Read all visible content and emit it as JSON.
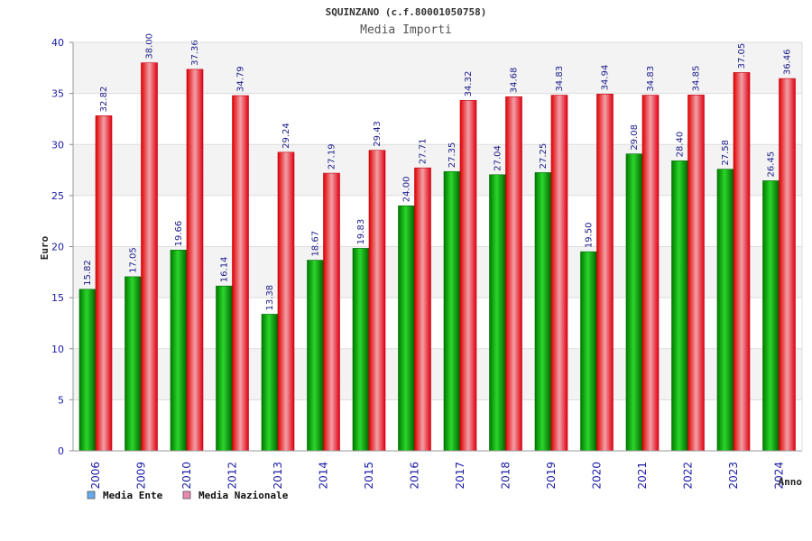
{
  "chart_data": {
    "type": "bar",
    "title": "SQUINZANO (c.f.80001050758)",
    "subtitle": "Media Importi",
    "ylabel": "Euro",
    "xlabel": "Anno",
    "ylim": [
      0,
      40
    ],
    "yticks": [
      0,
      5,
      10,
      15,
      20,
      25,
      30,
      35,
      40
    ],
    "grid": true,
    "legend_position": "bottom-left",
    "categories": [
      "2006",
      "2009",
      "2010",
      "2012",
      "2013",
      "2014",
      "2015",
      "2016",
      "2017",
      "2018",
      "2019",
      "2020",
      "2021",
      "2022",
      "2023",
      "2024"
    ],
    "series": [
      {
        "name": "Media Ente",
        "color": "#00b000",
        "legend_color": "#66aaee",
        "values": [
          15.82,
          17.05,
          19.66,
          16.14,
          13.38,
          18.67,
          19.83,
          24.0,
          27.35,
          27.04,
          27.25,
          19.5,
          29.08,
          28.4,
          27.58,
          26.45
        ],
        "labels": [
          "15.82",
          "17.05",
          "19.66",
          "16.14",
          "13.38",
          "18.67",
          "19.83",
          "24.00",
          "27.35",
          "27.04",
          "27.25",
          "19.50",
          "29.08",
          "28.40",
          "27.58",
          "26.45"
        ]
      },
      {
        "name": "Media Nazionale",
        "color": "#e8101e",
        "legend_color": "#e888b0",
        "values": [
          32.82,
          38.0,
          37.36,
          34.79,
          29.24,
          27.19,
          29.43,
          27.71,
          34.32,
          34.68,
          34.83,
          34.94,
          34.83,
          34.85,
          37.05,
          36.46
        ],
        "labels": [
          "32.82",
          "38.00",
          "37.36",
          "34.79",
          "29.24",
          "27.19",
          "29.43",
          "27.71",
          "34.32",
          "34.68",
          "34.83",
          "34.94",
          "34.83",
          "34.85",
          "37.05",
          "36.46"
        ]
      }
    ]
  }
}
